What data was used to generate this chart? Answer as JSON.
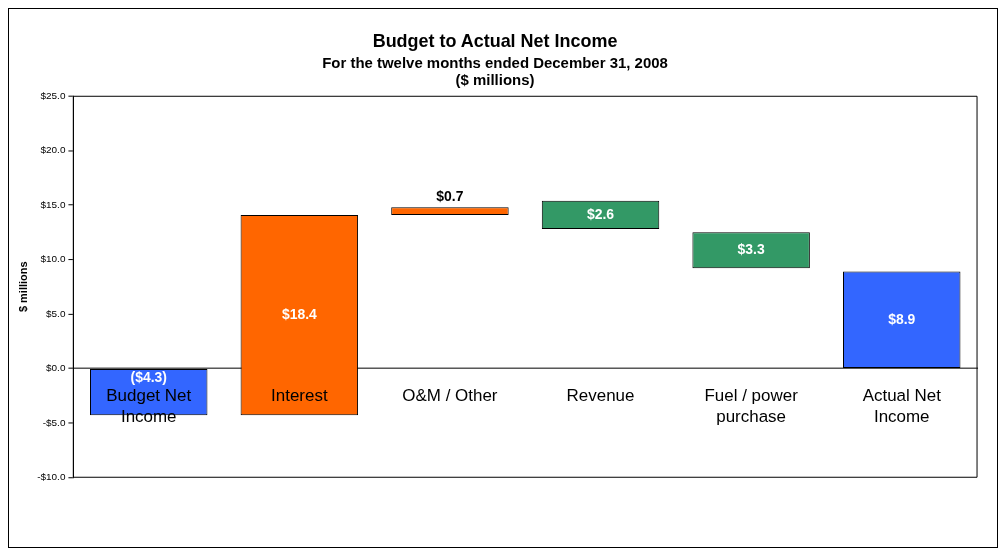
{
  "chart_data": {
    "type": "bar",
    "title": "Budget to Actual Net Income",
    "subtitle": "For the twelve months ended December 31, 2008\n($ millions)",
    "ylabel": "$ millions",
    "categories": [
      "Budget Net Income",
      "Interest",
      "O&M / Other",
      "Revenue",
      "Fuel / power purchase",
      "Actual Net Income"
    ],
    "values": [
      -4.3,
      18.4,
      0.7,
      -2.6,
      -3.3,
      8.9
    ],
    "base": [
      0,
      -4.3,
      14.1,
      15.4,
      12.5,
      0
    ],
    "colors": [
      "#3366ff",
      "#ff6600",
      "#ff6600",
      "#339966",
      "#339966",
      "#3366ff"
    ],
    "value_labels": [
      "($4.3)",
      "$18.4",
      "$0.7",
      "$2.6",
      "$3.3",
      "$8.9"
    ],
    "ylim": [
      -10,
      25
    ],
    "yticks": [
      {
        "value": -10,
        "label": "-$10.0"
      },
      {
        "value": -5,
        "label": "-$5.0"
      },
      {
        "value": 0,
        "label": "$0.0"
      },
      {
        "value": 5,
        "label": "$5.0"
      },
      {
        "value": 10,
        "label": "$10.0"
      },
      {
        "value": 15,
        "label": "$15.0"
      },
      {
        "value": 20,
        "label": "$20.0"
      },
      {
        "value": 25,
        "label": "$25.0"
      }
    ],
    "grid": false,
    "legend": false
  }
}
